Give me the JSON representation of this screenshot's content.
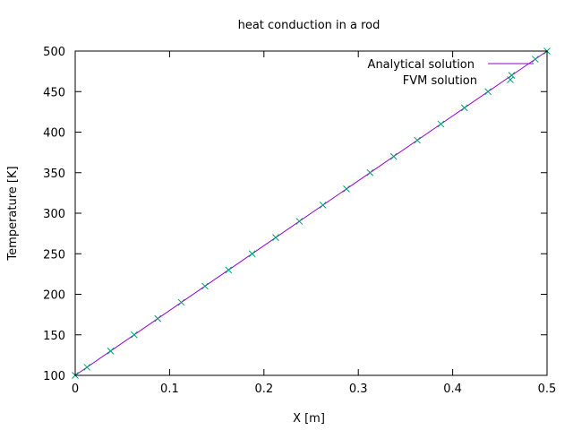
{
  "chart_data": {
    "type": "line",
    "title": "heat conduction in a rod",
    "xlabel": "X [m]",
    "ylabel": "Temperature [K]",
    "xlim": [
      0,
      0.5
    ],
    "ylim": [
      100,
      500
    ],
    "x_ticks": [
      "0",
      "0.1",
      "0.2",
      "0.3",
      "0.4",
      "0.5"
    ],
    "y_ticks": [
      "100",
      "150",
      "200",
      "250",
      "300",
      "350",
      "400",
      "450",
      "500"
    ],
    "grid": false,
    "legend_position": "top-right",
    "series": [
      {
        "name": "Analytical solution",
        "style": "line",
        "color": "#9400d3",
        "x": [
          0,
          0.5
        ],
        "y": [
          100,
          500
        ]
      },
      {
        "name": "FVM solution",
        "style": "markers",
        "marker": "x",
        "color": "#009e73",
        "x": [
          0,
          0.0125,
          0.0375,
          0.0625,
          0.0875,
          0.1125,
          0.1375,
          0.1625,
          0.1875,
          0.2125,
          0.2375,
          0.2625,
          0.2875,
          0.3125,
          0.3375,
          0.3625,
          0.3875,
          0.4125,
          0.4375,
          0.4625,
          0.4875,
          0.5
        ],
        "y": [
          100,
          110,
          130,
          150,
          170,
          190,
          210,
          230,
          250,
          270,
          290,
          310,
          330,
          350,
          370,
          390,
          410,
          430,
          450,
          470,
          490,
          500
        ]
      }
    ]
  }
}
